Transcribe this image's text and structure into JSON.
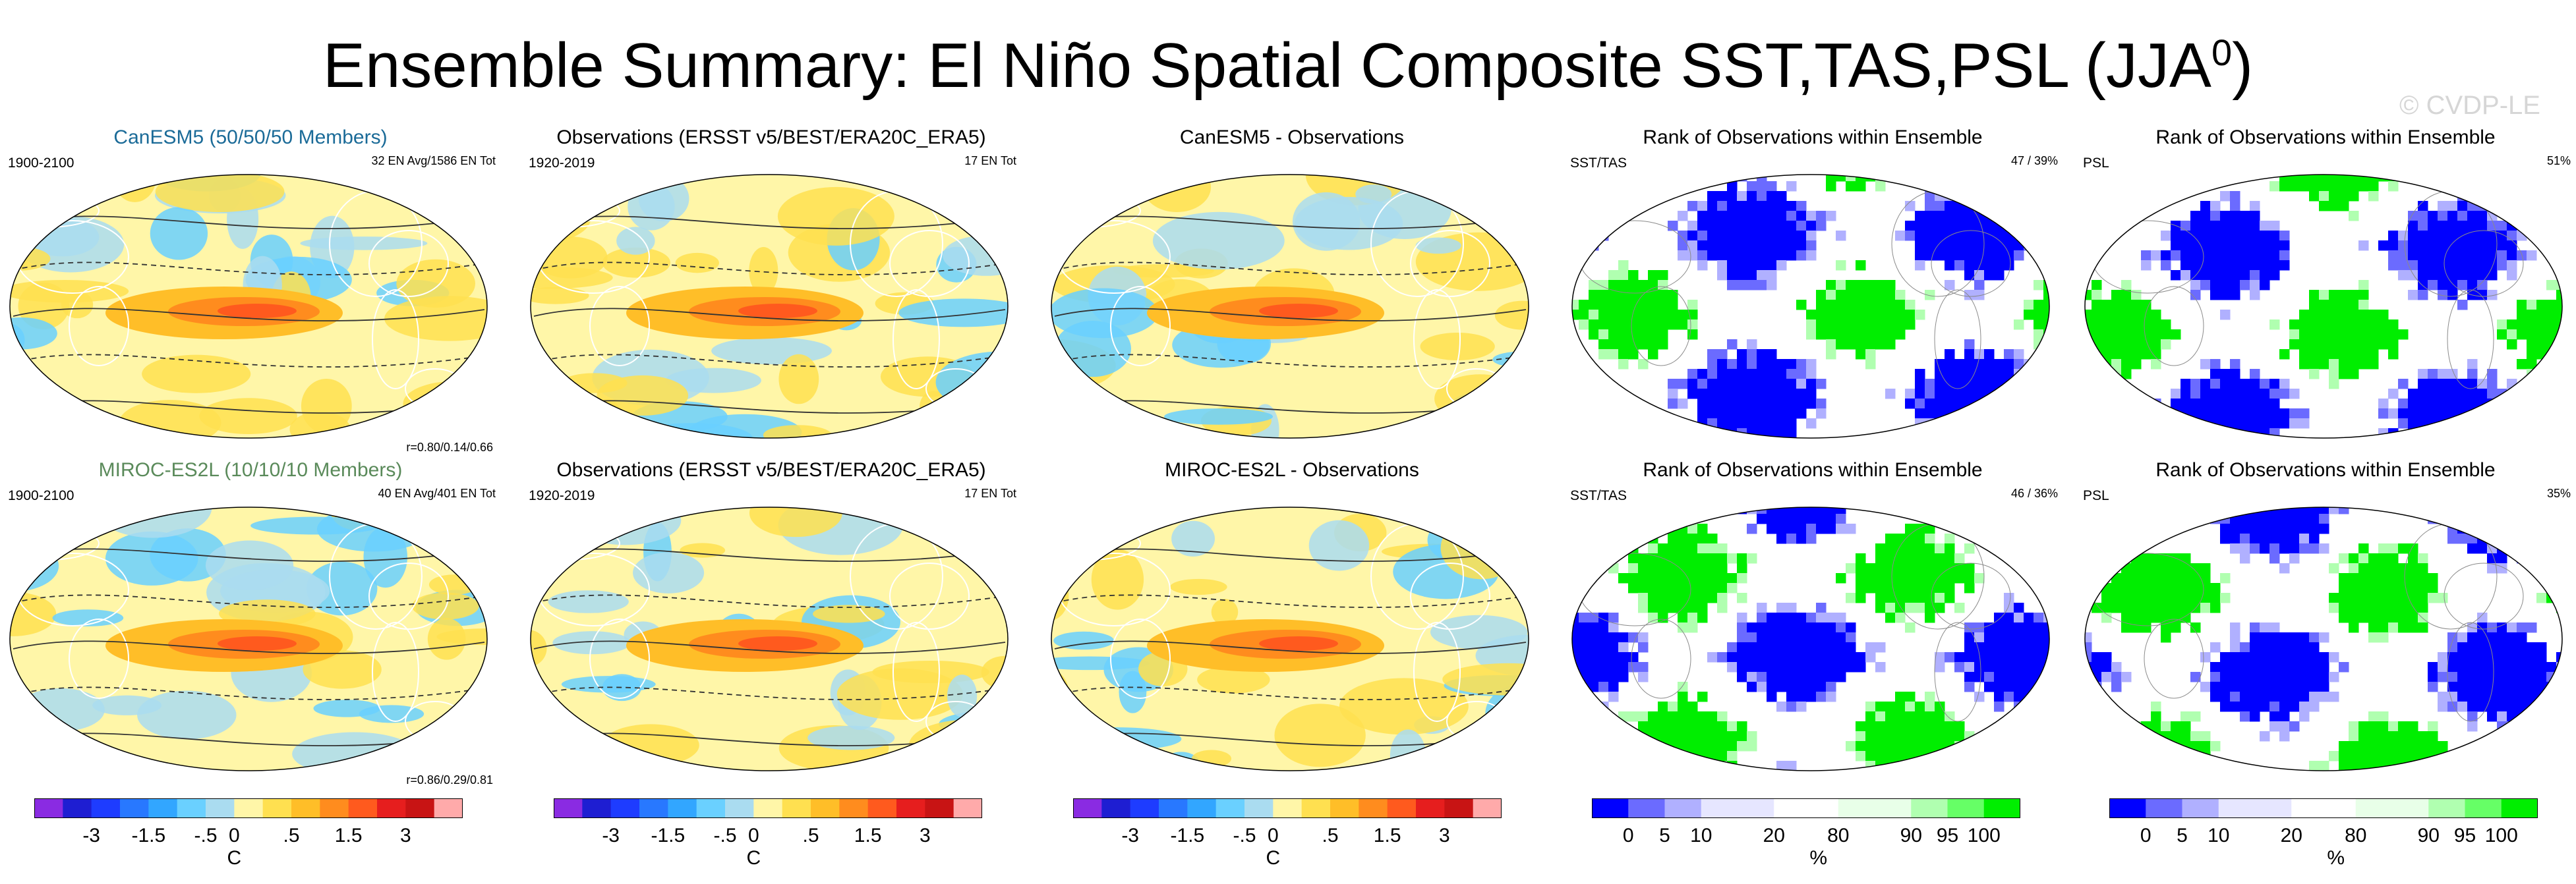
{
  "title_main": "Ensemble Summary: El Niño Spatial Composite SST,TAS,PSL (JJA",
  "title_sup": "0",
  "title_close": ")",
  "watermark": "© CVDP-LE",
  "colors": {
    "title_canesm": "#1b6b98",
    "title_miroc": "#5a8a5a",
    "diverging": [
      "#8a2be2",
      "#1e1ed2",
      "#1e3cff",
      "#2878ff",
      "#32a6ff",
      "#6ad0ff",
      "#aadcf0",
      "#fff6a8",
      "#ffe050",
      "#ffbe28",
      "#ff8c1e",
      "#ff5a1e",
      "#e61e1e",
      "#c81414",
      "#ffaaaa"
    ],
    "rank": [
      "#0000ff",
      "#6b6bff",
      "#b0b0ff",
      "#e6e6ff",
      "#ffffff",
      "#e8ffe8",
      "#b0ffb0",
      "#66ff66",
      "#00ee00"
    ]
  },
  "chart_data": [
    {
      "id": "p1",
      "type": "map",
      "title": "CanESM5 (50/50/50 Members)",
      "period": "1900-2100",
      "info": "32 EN Avg/1586 EN Tot",
      "stats": "r=0.80/0.14/0.66"
    },
    {
      "id": "p2",
      "type": "map",
      "title": "Observations (ERSST v5/BEST/ERA20C_ERA5)",
      "period": "1920-2019",
      "info": "17 EN Tot"
    },
    {
      "id": "p3",
      "type": "map",
      "title": "CanESM5 - Observations"
    },
    {
      "id": "p4",
      "type": "map",
      "title": "Rank of Observations within Ensemble",
      "label": "SST/TAS",
      "info": "47 /  39%"
    },
    {
      "id": "p5",
      "type": "map",
      "title": "Rank of Observations within Ensemble",
      "label": "PSL",
      "info": "51%"
    },
    {
      "id": "p6",
      "type": "map",
      "title": "MIROC-ES2L (10/10/10 Members)",
      "period": "1900-2100",
      "info": "40 EN Avg/401 EN Tot",
      "stats": "r=0.86/0.29/0.81"
    },
    {
      "id": "p7",
      "type": "map",
      "title": "Observations (ERSST v5/BEST/ERA20C_ERA5)",
      "period": "1920-2019",
      "info": "17 EN Tot"
    },
    {
      "id": "p8",
      "type": "map",
      "title": "MIROC-ES2L - Observations"
    },
    {
      "id": "p9",
      "type": "map",
      "title": "Rank of Observations within Ensemble",
      "label": "SST/TAS",
      "info": "46 /  36%"
    },
    {
      "id": "p10",
      "type": "map",
      "title": "Rank of Observations within Ensemble",
      "label": "PSL",
      "info": "35%"
    }
  ],
  "colorbars": {
    "temp": {
      "ticks": [
        "-3",
        "-1.5",
        "-.5",
        "0",
        ".5",
        "1.5",
        "3"
      ],
      "unit": "C"
    },
    "rank": {
      "ticks": [
        "0",
        "5",
        "10",
        "20",
        "80",
        "90",
        "95",
        "100"
      ],
      "unit": "%"
    }
  }
}
